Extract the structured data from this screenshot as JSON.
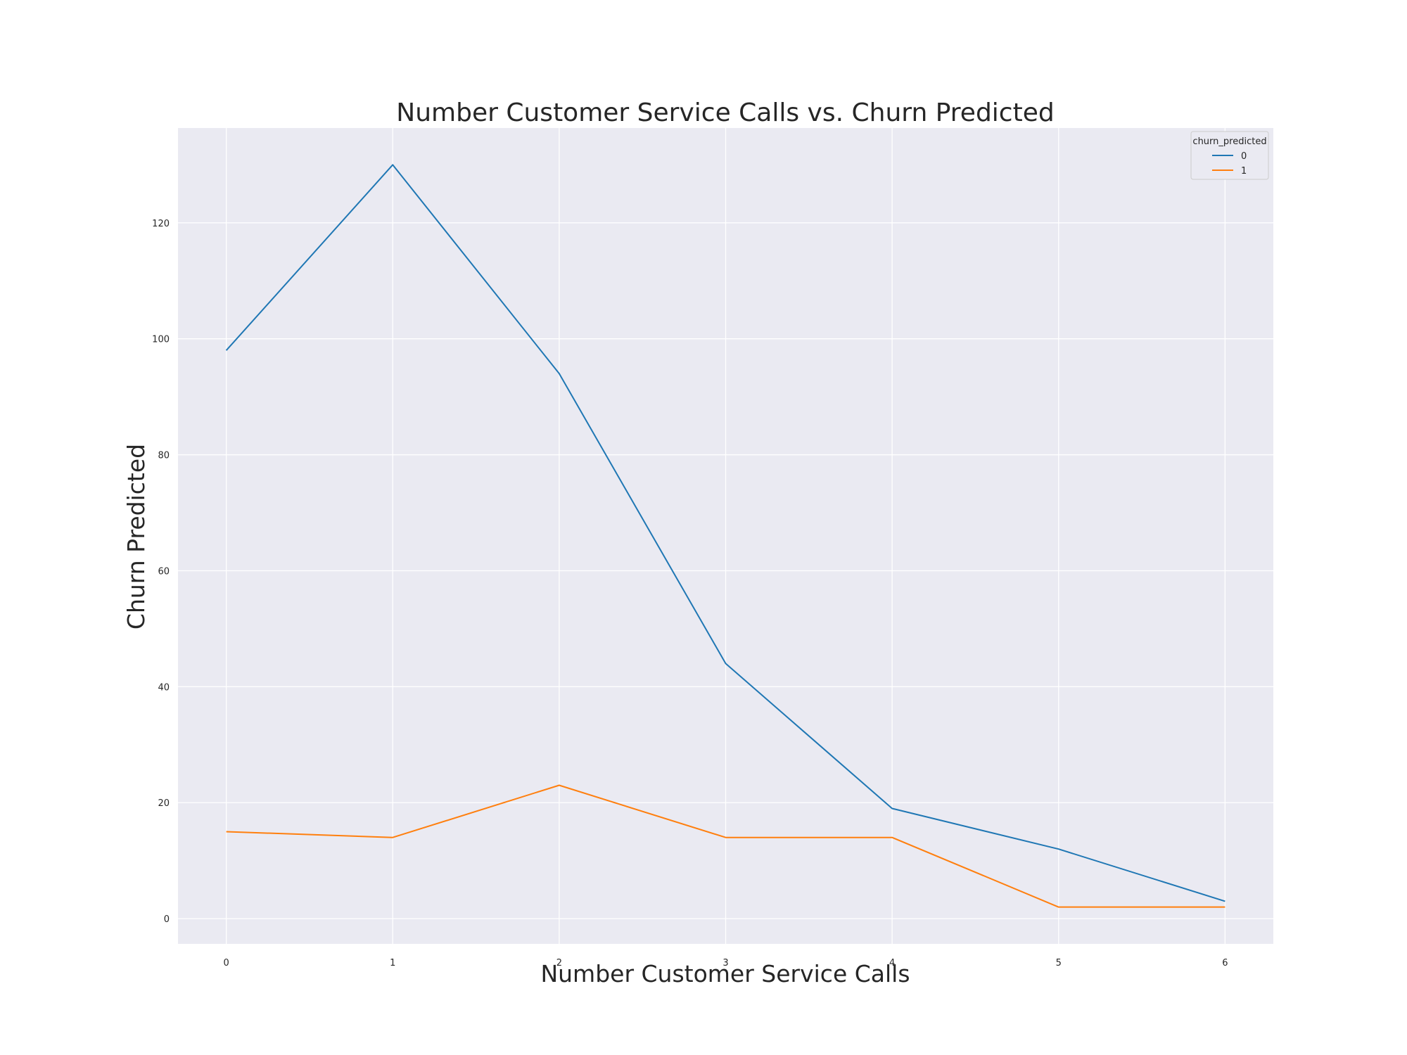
{
  "chart_data": {
    "type": "line",
    "title": "Number Customer Service Calls vs. Churn Predicted",
    "xlabel": "Number Customer Service Calls",
    "ylabel": "Churn Predicted",
    "x": [
      0,
      1,
      2,
      3,
      4,
      5,
      6
    ],
    "xticks": [
      "0",
      "1",
      "2",
      "3",
      "4",
      "5",
      "6"
    ],
    "yticks": [
      "0",
      "20",
      "40",
      "60",
      "80",
      "100",
      "120"
    ],
    "xlim": [
      -0.29,
      6.29
    ],
    "ylim": [
      -4.35,
      136.35
    ],
    "grid": true,
    "legend": {
      "title": "churn_predicted",
      "placement": "top-right"
    },
    "series": [
      {
        "name": "0",
        "color": "#1f77b4",
        "values": [
          98,
          130,
          94,
          44,
          19,
          12,
          3
        ]
      },
      {
        "name": "1",
        "color": "#ff7f0e",
        "values": [
          15,
          14,
          23,
          14,
          14,
          2,
          2
        ]
      }
    ],
    "colors": {
      "plot_background": "#eaeaf2",
      "grid": "#ffffff",
      "text": "#262626"
    }
  }
}
